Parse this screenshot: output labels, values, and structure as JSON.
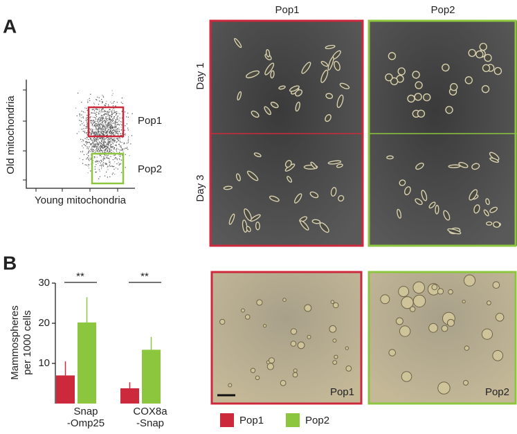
{
  "panels": {
    "a": {
      "label": "A",
      "flow_plot": {
        "x_label": "Young mitochondria",
        "y_label": "Old mitochondria",
        "gates": [
          "Pop1",
          "Pop2"
        ]
      },
      "images": {
        "columns": [
          "Pop1",
          "Pop2"
        ],
        "rows": [
          "Day 1",
          "Day 3"
        ]
      }
    },
    "b": {
      "label": "B",
      "sphere_images": [
        "Pop1",
        "Pop2"
      ]
    }
  },
  "chart_data": {
    "type": "bar",
    "y_label": [
      "Mammospheres",
      "per 1000 cells"
    ],
    "categories": [
      [
        "Snap",
        "-Omp25"
      ],
      [
        "COX8a",
        "-Snap"
      ]
    ],
    "series": [
      {
        "name": "Pop1",
        "color": "#cc2a3c",
        "values": [
          7,
          3.8
        ],
        "errors": [
          3.5,
          1.5
        ]
      },
      {
        "name": "Pop2",
        "color": "#8cc63f",
        "values": [
          20.2,
          13.4
        ],
        "errors": [
          6.3,
          3.2
        ]
      }
    ],
    "significance": [
      "**",
      "**"
    ],
    "ylim": [
      0,
      30
    ],
    "yticks": [
      10,
      20,
      30
    ],
    "legend": "bottom"
  }
}
